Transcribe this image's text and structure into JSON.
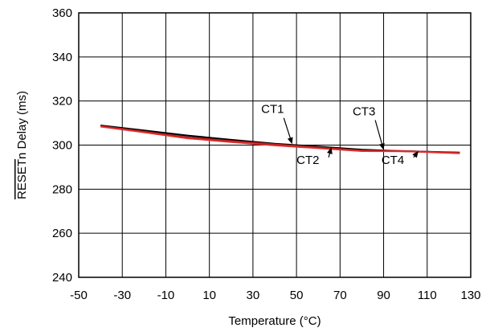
{
  "chart_data": {
    "type": "line",
    "title": "",
    "xlabel": "Temperature (°C)",
    "ylabel": "RESETn Delay (ms)",
    "ylabel_overline": "RESET",
    "ylabel_rest": "n Delay (ms)",
    "xlim": [
      -50,
      130
    ],
    "ylim": [
      240,
      360
    ],
    "x_ticks": [
      -50,
      -30,
      -10,
      10,
      30,
      50,
      70,
      90,
      110,
      130
    ],
    "y_ticks": [
      240,
      260,
      280,
      300,
      320,
      340,
      360
    ],
    "grid": true,
    "legend": "none",
    "series": [
      {
        "color": "#000000",
        "x": [
          -40,
          -20,
          0,
          20,
          40,
          60,
          80,
          100,
          125
        ],
        "y": [
          308.9,
          306.6,
          304.3,
          302.4,
          300.6,
          299.3,
          297.9,
          297.2,
          296.6
        ]
      },
      {
        "color": "#cc1f1f",
        "x": [
          -40,
          -20,
          0,
          20,
          40,
          60,
          80,
          100,
          125
        ],
        "y": [
          308.7,
          306.2,
          303.6,
          301.9,
          300.4,
          299.0,
          297.6,
          297.4,
          296.5
        ]
      },
      {
        "color": "#b22222",
        "x": [
          -40,
          -20,
          0,
          20,
          40,
          60,
          80,
          100,
          125
        ],
        "y": [
          308.5,
          305.9,
          303.3,
          301.6,
          300.1,
          298.8,
          297.4,
          297.3,
          296.4
        ]
      },
      {
        "color": "#e03030",
        "x": [
          -40,
          -20,
          0,
          20,
          40,
          60,
          80,
          100,
          125
        ],
        "y": [
          308.3,
          305.7,
          303.0,
          301.3,
          299.8,
          298.5,
          297.2,
          297.1,
          296.2
        ]
      }
    ],
    "annotations": [
      {
        "text": "CT1",
        "label_x": 39,
        "label_y": 314.5,
        "point_x": 48,
        "point_y": 300.5,
        "anchor": "middle"
      },
      {
        "text": "CT2",
        "label_x": 50,
        "label_y": 291.5,
        "point_x": 66,
        "point_y": 299.0,
        "anchor": "start"
      },
      {
        "text": "CT3",
        "label_x": 81,
        "label_y": 313.5,
        "point_x": 90,
        "point_y": 297.8,
        "anchor": "middle"
      },
      {
        "text": "CT4",
        "label_x": 89,
        "label_y": 291.5,
        "point_x": 106,
        "point_y": 297.3,
        "anchor": "start"
      }
    ]
  }
}
